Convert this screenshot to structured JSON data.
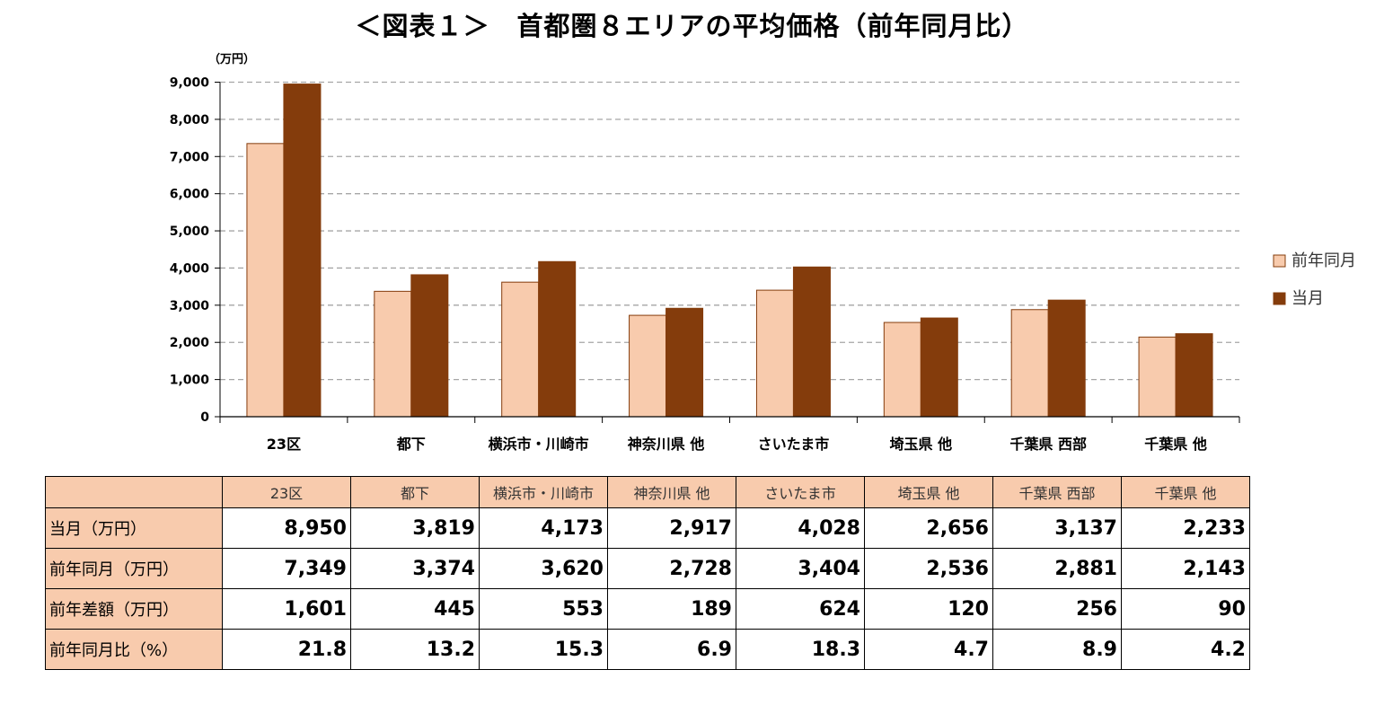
{
  "title": "＜図表１＞　首都圏８エリアの平均価格（前年同月比）",
  "colors": {
    "prev": "#f8cbad",
    "curr": "#843c0c",
    "header": "#f8cbad"
  },
  "chart_data": {
    "type": "bar",
    "title": "＜図表１＞　首都圏８エリアの平均価格（前年同月比）",
    "ylabel": "（万円）",
    "xlabel": "",
    "ylim": [
      0,
      9000
    ],
    "yticks": [
      0,
      1000,
      2000,
      3000,
      4000,
      5000,
      6000,
      7000,
      8000,
      9000
    ],
    "ytick_labels": [
      "0",
      "1,000",
      "2,000",
      "3,000",
      "4,000",
      "5,000",
      "6,000",
      "7,000",
      "8,000",
      "9,000"
    ],
    "grid": true,
    "legend_position": "right",
    "categories": [
      "23区",
      "都下",
      "横浜市・川崎市",
      "神奈川県 他",
      "さいたま市",
      "埼玉県 他",
      "千葉県 西部",
      "千葉県 他"
    ],
    "series": [
      {
        "name": "前年同月",
        "values": [
          7349,
          3374,
          3620,
          2728,
          3404,
          2536,
          2881,
          2143
        ]
      },
      {
        "name": "当月",
        "values": [
          8950,
          3819,
          4173,
          2917,
          4028,
          2656,
          3137,
          2233
        ]
      }
    ]
  },
  "table": {
    "header": [
      "23区",
      "都下",
      "横浜市・川崎市",
      "神奈川県 他",
      "さいたま市",
      "埼玉県 他",
      "千葉県 西部",
      "千葉県 他"
    ],
    "rows": [
      {
        "label": "当月（万円）",
        "values": [
          "8,950",
          "3,819",
          "4,173",
          "2,917",
          "4,028",
          "2,656",
          "3,137",
          "2,233"
        ]
      },
      {
        "label": "前年同月（万円）",
        "values": [
          "7,349",
          "3,374",
          "3,620",
          "2,728",
          "3,404",
          "2,536",
          "2,881",
          "2,143"
        ]
      },
      {
        "label": "前年差額（万円）",
        "values": [
          "1,601",
          "445",
          "553",
          "189",
          "624",
          "120",
          "256",
          "90"
        ]
      },
      {
        "label": "前年同月比（%）",
        "values": [
          "21.8",
          "13.2",
          "15.3",
          "6.9",
          "18.3",
          "4.7",
          "8.9",
          "4.2"
        ]
      }
    ]
  }
}
